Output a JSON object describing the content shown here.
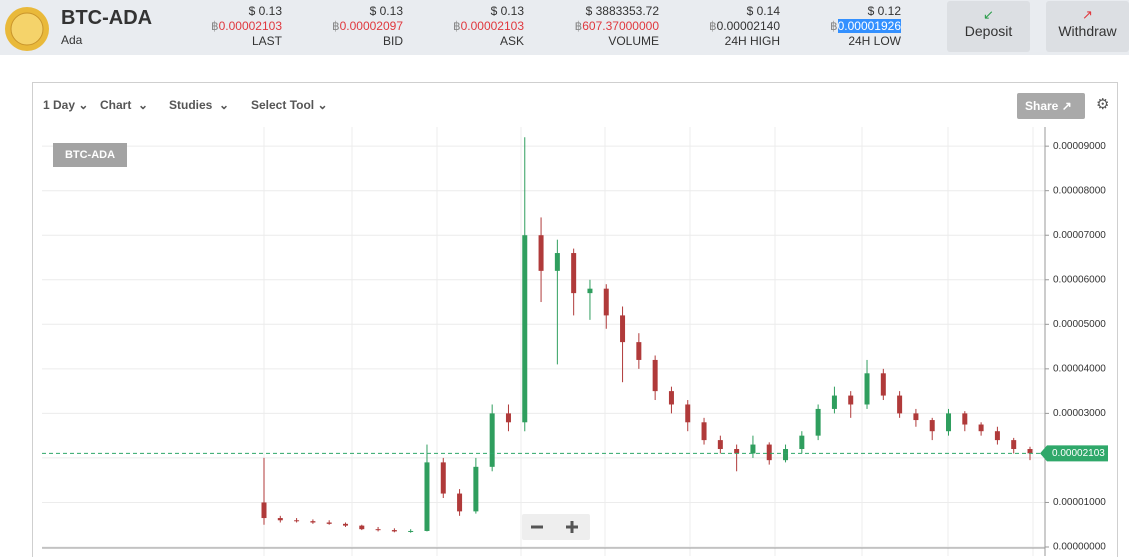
{
  "header": {
    "pair": "BTC-ADA",
    "name": "Ada",
    "btc_symbol": "฿",
    "stats": [
      {
        "usd": "$ 0.13",
        "btc": "0.00002103",
        "label": "LAST",
        "value_color": "#e0383e"
      },
      {
        "usd": "$ 0.13",
        "btc": "0.00002097",
        "label": "BID",
        "value_color": "#e0383e"
      },
      {
        "usd": "$ 0.13",
        "btc": "0.00002103",
        "label": "ASK",
        "value_color": "#e0383e"
      },
      {
        "usd": "$ 3883353.72",
        "btc": "607.37000000",
        "label": "VOLUME",
        "value_color": "#e0383e"
      },
      {
        "usd": "$ 0.14",
        "btc": "0.00002140",
        "label": "24H HIGH",
        "value_color": "#333333"
      },
      {
        "usd": "$ 0.12",
        "btc": "0.00001926",
        "label": "24H LOW",
        "value_color": "#ffffff"
      }
    ],
    "buttons": [
      "Deposit",
      "Withdraw"
    ]
  },
  "toolbar": {
    "menus": [
      "1 Day",
      "Chart",
      "Studies",
      "Select Tool"
    ],
    "share": "Share"
  },
  "chart_data": {
    "type": "candlestick",
    "title": "BTC-ADA",
    "up_color": "#2f9e5e",
    "down_color": "#b03a3a",
    "grid": true,
    "ylim": [
      0,
      9.43e-05
    ],
    "yticks": [
      {
        "value": 0,
        "label": "0.00000000"
      },
      {
        "value": 1e-05,
        "label": "0.00001000"
      },
      {
        "value": 2e-05,
        "label": "0.00002000"
      },
      {
        "value": 3e-05,
        "label": "0.00003000"
      },
      {
        "value": 4e-05,
        "label": "0.00004000"
      },
      {
        "value": 5e-05,
        "label": "0.00005000"
      },
      {
        "value": 6e-05,
        "label": "0.00006000"
      },
      {
        "value": 7e-05,
        "label": "0.00007000"
      },
      {
        "value": 8e-05,
        "label": "0.00008000"
      },
      {
        "value": 9e-05,
        "label": "0.00009000"
      }
    ],
    "price_tag": {
      "value": 2.103e-05,
      "label": "0.00002103",
      "color": "#2fa86a"
    },
    "candles": [
      [
        1e-05,
        2e-05,
        5e-06,
        6.5e-06
      ],
      [
        6.5e-06,
        7e-06,
        5.5e-06,
        6e-06
      ],
      [
        6e-06,
        6.5e-06,
        5.5e-06,
        5.8e-06
      ],
      [
        5.8e-06,
        6.2e-06,
        5.2e-06,
        5.5e-06
      ],
      [
        5.5e-06,
        6e-06,
        5e-06,
        5.2e-06
      ],
      [
        5.2e-06,
        5.5e-06,
        4.5e-06,
        4.8e-06
      ],
      [
        4.8e-06,
        5e-06,
        3.8e-06,
        4e-06
      ],
      [
        4e-06,
        4.5e-06,
        3.5e-06,
        3.8e-06
      ],
      [
        3.8e-06,
        4.2e-06,
        3.3e-06,
        3.5e-06
      ],
      [
        3.5e-06,
        4e-06,
        3.2e-06,
        3.6e-06
      ],
      [
        3.6e-06,
        2.3e-05,
        3.5e-06,
        1.9e-05
      ],
      [
        1.9e-05,
        2e-05,
        1.1e-05,
        1.2e-05
      ],
      [
        1.2e-05,
        1.3e-05,
        7e-06,
        8e-06
      ],
      [
        8e-06,
        2e-05,
        7.5e-06,
        1.8e-05
      ],
      [
        1.8e-05,
        3.2e-05,
        1.7e-05,
        3e-05
      ],
      [
        3e-05,
        3.2e-05,
        2.6e-05,
        2.8e-05
      ],
      [
        2.8e-05,
        9.2e-05,
        2.6e-05,
        7e-05
      ],
      [
        7e-05,
        7.4e-05,
        5.5e-05,
        6.2e-05
      ],
      [
        6.2e-05,
        6.9e-05,
        4.1e-05,
        6.6e-05
      ],
      [
        6.6e-05,
        6.7e-05,
        5.2e-05,
        5.7e-05
      ],
      [
        5.7e-05,
        6e-05,
        5.1e-05,
        5.8e-05
      ],
      [
        5.8e-05,
        5.9e-05,
        4.9e-05,
        5.2e-05
      ],
      [
        5.2e-05,
        5.4e-05,
        3.7e-05,
        4.6e-05
      ],
      [
        4.6e-05,
        4.8e-05,
        4e-05,
        4.2e-05
      ],
      [
        4.2e-05,
        4.3e-05,
        3.3e-05,
        3.5e-05
      ],
      [
        3.5e-05,
        3.6e-05,
        3e-05,
        3.2e-05
      ],
      [
        3.2e-05,
        3.3e-05,
        2.6e-05,
        2.8e-05
      ],
      [
        2.8e-05,
        2.9e-05,
        2.3e-05,
        2.4e-05
      ],
      [
        2.4e-05,
        2.5e-05,
        2.1e-05,
        2.2e-05
      ],
      [
        2.2e-05,
        2.3e-05,
        1.7e-05,
        2.1e-05
      ],
      [
        2.1e-05,
        2.5e-05,
        2e-05,
        2.3e-05
      ],
      [
        2.3e-05,
        2.35e-05,
        1.85e-05,
        1.95e-05
      ],
      [
        1.95e-05,
        2.3e-05,
        1.9e-05,
        2.2e-05
      ],
      [
        2.2e-05,
        2.6e-05,
        2.1e-05,
        2.5e-05
      ],
      [
        2.5e-05,
        3.2e-05,
        2.4e-05,
        3.1e-05
      ],
      [
        3.1e-05,
        3.6e-05,
        3e-05,
        3.4e-05
      ],
      [
        3.4e-05,
        3.5e-05,
        2.9e-05,
        3.2e-05
      ],
      [
        3.2e-05,
        4.2e-05,
        3.1e-05,
        3.9e-05
      ],
      [
        3.9e-05,
        4e-05,
        3.3e-05,
        3.4e-05
      ],
      [
        3.4e-05,
        3.5e-05,
        2.9e-05,
        3e-05
      ],
      [
        3e-05,
        3.1e-05,
        2.7e-05,
        2.85e-05
      ],
      [
        2.85e-05,
        2.9e-05,
        2.4e-05,
        2.6e-05
      ],
      [
        2.6e-05,
        3.1e-05,
        2.5e-05,
        3e-05
      ],
      [
        3e-05,
        3.05e-05,
        2.6e-05,
        2.75e-05
      ],
      [
        2.75e-05,
        2.8e-05,
        2.5e-05,
        2.6e-05
      ],
      [
        2.6e-05,
        2.7e-05,
        2.3e-05,
        2.4e-05
      ],
      [
        2.4e-05,
        2.45e-05,
        2.1e-05,
        2.2e-05
      ],
      [
        2.2e-05,
        2.25e-05,
        1.95e-05,
        2.103e-05
      ]
    ]
  }
}
